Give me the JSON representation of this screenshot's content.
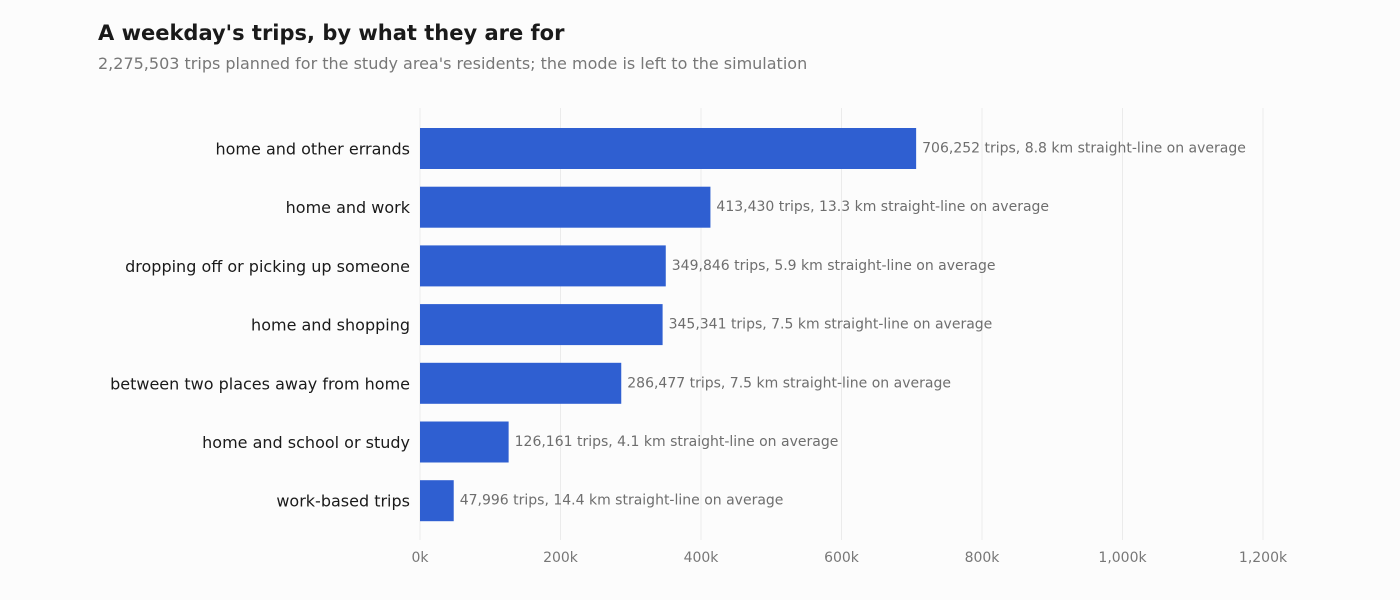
{
  "chart_data": {
    "type": "bar",
    "orientation": "horizontal",
    "title": "A weekday's trips, by what they are for",
    "subtitle": "2,275,503 trips planned for the study area's residents; the mode is left to the simulation",
    "categories": [
      "home and other errands",
      "home and work",
      "dropping off or picking up someone",
      "home and shopping",
      "between two places away from home",
      "home and school or study",
      "work-based trips"
    ],
    "values": [
      706252,
      413430,
      349846,
      345341,
      286477,
      126161,
      47996
    ],
    "data_labels": [
      "706,252 trips, 8.8 km straight-line on average",
      "413,430 trips, 13.3 km straight-line on average",
      "349,846 trips, 5.9 km straight-line on average",
      "345,341 trips, 7.5 km straight-line on average",
      "286,477 trips, 7.5 km straight-line on average",
      "126,161 trips, 4.1 km straight-line on average",
      "47,996 trips, 14.4 km straight-line on average"
    ],
    "xlim": [
      0,
      1200000
    ],
    "xticks": [
      0,
      200000,
      400000,
      600000,
      800000,
      1000000,
      1200000
    ],
    "xtick_labels": [
      "0k",
      "200k",
      "400k",
      "600k",
      "800k",
      "1,000k",
      "1,200k"
    ],
    "xlabel": "",
    "ylabel": "",
    "grid": "vertical",
    "legend": "none",
    "colors": {
      "bar": "#2f5fd1",
      "background": "#fcfcfc"
    }
  }
}
